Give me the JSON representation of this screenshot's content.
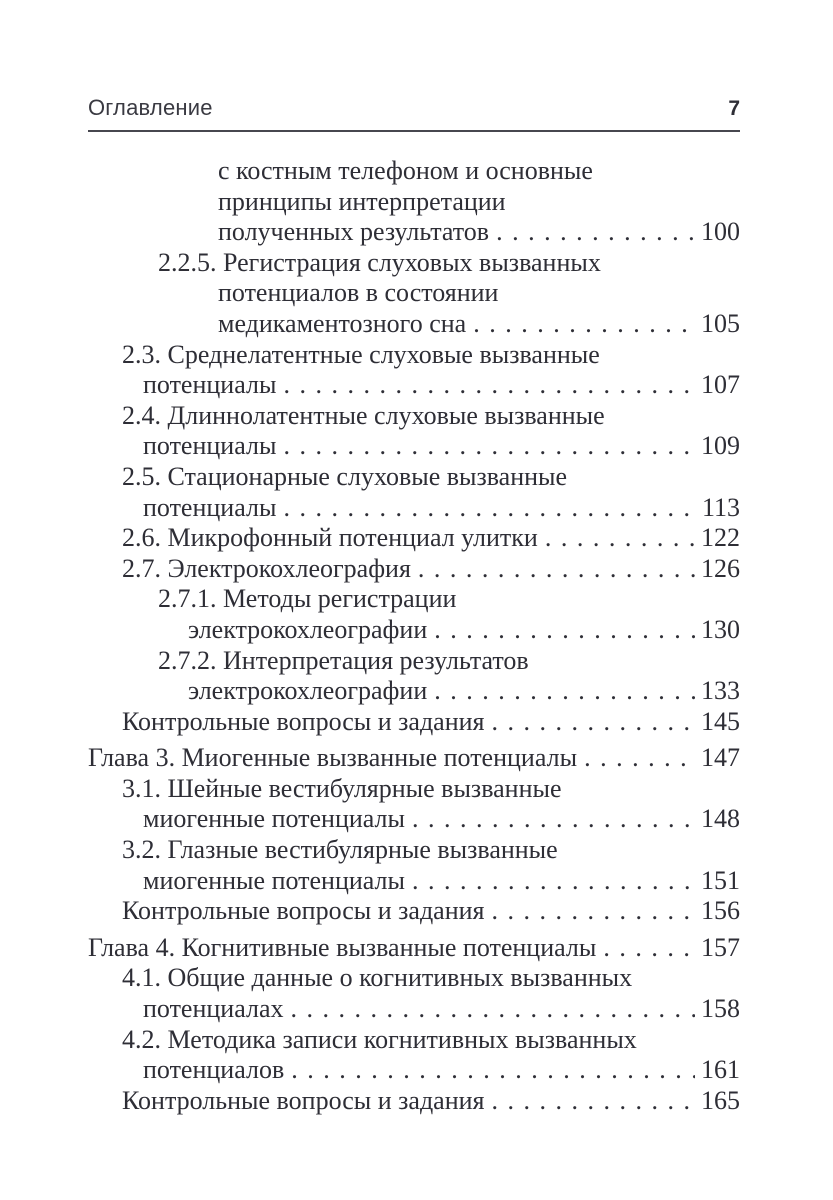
{
  "header": {
    "title": "Оглавление",
    "page_number": "7"
  },
  "colors": {
    "text": "#2e2e36",
    "rule": "#47474f",
    "background": "#ffffff"
  },
  "toc": {
    "lines": [
      {
        "indent": "l2c",
        "text": "с костным телефоном и основные",
        "page": ""
      },
      {
        "indent": "l2c",
        "text": "принципы интерпретации",
        "page": ""
      },
      {
        "indent": "l2c",
        "text": "полученных результатов",
        "page": "100"
      },
      {
        "indent": "l2",
        "text": "2.2.5. Регистрация слуховых вызванных",
        "page": ""
      },
      {
        "indent": "l2c",
        "text": "потенциалов в состоянии",
        "page": ""
      },
      {
        "indent": "l2c",
        "text": "медикаментозного сна",
        "page": "105"
      },
      {
        "indent": "l1",
        "text": "2.3. Среднелатентные слуховые вызванные",
        "page": ""
      },
      {
        "indent": "l1c",
        "text": "потенциалы",
        "page": "107"
      },
      {
        "indent": "l1",
        "text": "2.4. Длиннолатентные слуховые вызванные",
        "page": ""
      },
      {
        "indent": "l1c",
        "text": "потенциалы",
        "page": "109"
      },
      {
        "indent": "l1",
        "text": "2.5. Стационарные слуховые вызванные",
        "page": ""
      },
      {
        "indent": "l1c",
        "text": "потенциалы",
        "page": "113"
      },
      {
        "indent": "l1",
        "text": "2.6. Микрофонный потенциал улитки",
        "page": "122"
      },
      {
        "indent": "l1",
        "text": "2.7. Электрокохлеография",
        "page": "126"
      },
      {
        "indent": "l2",
        "text": "2.7.1. Методы регистрации",
        "page": ""
      },
      {
        "indent": "l2cb",
        "text": "электрокохлеографии",
        "page": "130"
      },
      {
        "indent": "l2",
        "text": "2.7.2. Интерпретация результатов",
        "page": ""
      },
      {
        "indent": "l2cb",
        "text": "электрокохлеографии",
        "page": "133"
      },
      {
        "indent": "l1",
        "text": "Контрольные вопросы и задания",
        "page": "145"
      },
      {
        "indent": "ch",
        "text": "Глава 3. Миогенные вызванные потенциалы",
        "page": "147"
      },
      {
        "indent": "l1",
        "text": "3.1. Шейные вестибулярные вызванные",
        "page": ""
      },
      {
        "indent": "l1c",
        "text": "миогенные потенциалы",
        "page": "148"
      },
      {
        "indent": "l1",
        "text": "3.2. Глазные вестибулярные вызванные",
        "page": ""
      },
      {
        "indent": "l1c",
        "text": "миогенные потенциалы",
        "page": "151"
      },
      {
        "indent": "l1",
        "text": "Контрольные вопросы и задания",
        "page": "156"
      },
      {
        "indent": "ch",
        "text": "Глава 4. Когнитивные вызванные потенциалы",
        "page": "157"
      },
      {
        "indent": "l1",
        "text": "4.1. Общие данные о когнитивных вызванных",
        "page": ""
      },
      {
        "indent": "l1c",
        "text": "потенциалах",
        "page": "158"
      },
      {
        "indent": "l1",
        "text": "4.2. Методика записи когнитивных вызванных",
        "page": ""
      },
      {
        "indent": "l1c",
        "text": "потенциалов",
        "page": "161"
      },
      {
        "indent": "l1",
        "text": "Контрольные вопросы и задания",
        "page": "165"
      }
    ]
  }
}
